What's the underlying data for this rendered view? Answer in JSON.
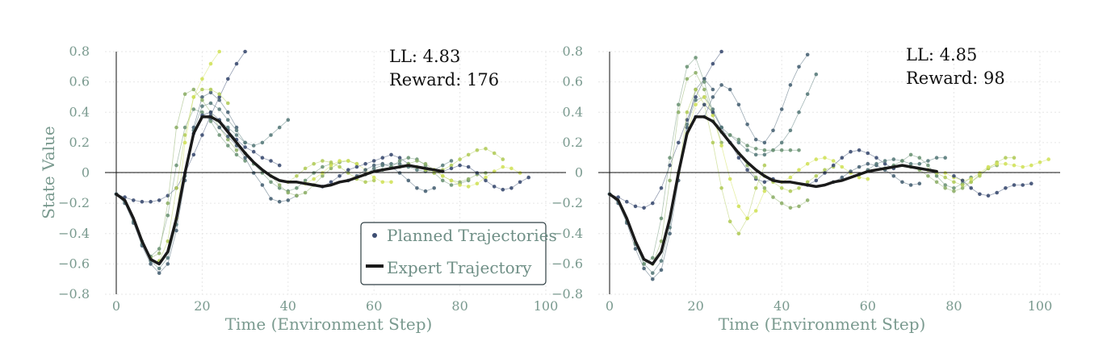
{
  "colors": {
    "expert": "#1a1a1a",
    "palette": [
      "#3d4e72",
      "#4a6476",
      "#5a7c7c",
      "#6f9678",
      "#8fb06a",
      "#b2cc5c",
      "#d2e25c"
    ],
    "axis_text": "#7a9a8f",
    "grid": "#e6e6e6"
  },
  "legend": {
    "planned_label": "Planned Trajectories",
    "expert_label": "Expert Trajectory"
  },
  "chart_data": [
    {
      "type": "line",
      "title": "",
      "xlabel": "Time (Environment Step)",
      "ylabel": "State Value",
      "xlim": [
        -3,
        101
      ],
      "ylim": [
        -0.8,
        0.8
      ],
      "xticks": [
        0,
        20,
        40,
        60,
        80,
        100
      ],
      "yticks": [
        -0.8,
        -0.6,
        -0.4,
        -0.2,
        0,
        0.2,
        0.4,
        0.6,
        0.8
      ],
      "grid": true,
      "legend_position": "bottom-right",
      "annotations": [
        "LL: 4.83",
        "Reward: 176"
      ],
      "expert": {
        "x": [
          0,
          2,
          4,
          6,
          8,
          10,
          12,
          14,
          16,
          18,
          20,
          22,
          24,
          26,
          28,
          30,
          32,
          34,
          36,
          38,
          40,
          42,
          44,
          46,
          48,
          50,
          52,
          54,
          56,
          58,
          60,
          62,
          64,
          66,
          68,
          70,
          72,
          74,
          76
        ],
        "values": [
          -0.14,
          -0.18,
          -0.3,
          -0.45,
          -0.57,
          -0.6,
          -0.52,
          -0.3,
          0.0,
          0.26,
          0.37,
          0.37,
          0.34,
          0.27,
          0.2,
          0.13,
          0.07,
          0.02,
          -0.02,
          -0.05,
          -0.06,
          -0.06,
          -0.07,
          -0.08,
          -0.09,
          -0.08,
          -0.06,
          -0.05,
          -0.03,
          -0.01,
          0.01,
          0.02,
          0.03,
          0.04,
          0.05,
          0.04,
          0.03,
          0.02,
          0.01
        ]
      },
      "planned": [
        {
          "start": 0,
          "values": [
            -0.14,
            -0.16,
            -0.18,
            -0.19,
            -0.19,
            -0.18,
            -0.15,
            -0.1,
            0.0,
            0.12,
            0.25,
            0.38,
            0.5,
            0.62,
            0.72,
            0.8
          ]
        },
        {
          "start": 0,
          "values": [
            -0.14,
            -0.2,
            -0.33,
            -0.48,
            -0.6,
            -0.66,
            -0.6,
            -0.38,
            -0.05,
            0.3,
            0.5,
            0.53,
            0.48,
            0.4,
            0.3
          ]
        },
        {
          "start": 0,
          "values": [
            -0.14,
            -0.19,
            -0.32,
            -0.47,
            -0.58,
            -0.63,
            -0.56,
            -0.34,
            -0.02,
            0.28,
            0.44,
            0.46,
            0.42,
            0.35,
            0.28,
            0.2
          ]
        },
        {
          "start": 6,
          "values": [
            -0.45,
            -0.55,
            -0.5,
            -0.28,
            0.05,
            0.3,
            0.42,
            0.4,
            0.34,
            0.25,
            0.18,
            0.12,
            0.08
          ]
        },
        {
          "start": 8,
          "values": [
            -0.56,
            -0.53,
            -0.2,
            0.3,
            0.52,
            0.55,
            0.48,
            0.4,
            0.3,
            0.22,
            0.15
          ]
        },
        {
          "start": 10,
          "values": [
            -0.58,
            -0.45,
            -0.1,
            0.25,
            0.5,
            0.55,
            0.55,
            0.52,
            0.46
          ]
        },
        {
          "start": 14,
          "values": [
            -0.3,
            0.2,
            0.5,
            0.62,
            0.72,
            0.8
          ]
        },
        {
          "start": 18,
          "values": [
            0.26,
            0.38,
            0.4,
            0.35,
            0.28,
            0.22,
            0.17,
            0.14,
            0.1,
            0.08,
            0.05
          ]
        },
        {
          "start": 20,
          "values": [
            0.37,
            0.36,
            0.3,
            0.24,
            0.18,
            0.1,
            0.0,
            -0.08,
            -0.17,
            -0.19,
            -0.18,
            -0.15
          ]
        },
        {
          "start": 24,
          "values": [
            0.34,
            0.3,
            0.25,
            0.2,
            0.18,
            0.2,
            0.25,
            0.3,
            0.35
          ]
        },
        {
          "start": 30,
          "values": [
            0.13,
            0.06,
            0.0,
            -0.06,
            -0.1,
            -0.12,
            -0.1,
            -0.05,
            0.0,
            0.04,
            0.06
          ]
        },
        {
          "start": 36,
          "values": [
            -0.02,
            -0.08,
            -0.13,
            -0.15,
            -0.13,
            -0.08,
            -0.02,
            0.03,
            0.07,
            0.08,
            0.06
          ]
        },
        {
          "start": 40,
          "values": [
            -0.06,
            -0.02,
            0.03,
            0.06,
            0.08,
            0.07,
            0.04,
            0.0,
            -0.04,
            -0.06,
            -0.05
          ]
        },
        {
          "start": 44,
          "values": [
            -0.07,
            -0.04,
            0.0,
            0.05,
            0.08,
            0.08,
            0.06,
            0.02,
            -0.03,
            -0.06,
            -0.06
          ]
        },
        {
          "start": 48,
          "values": [
            -0.09,
            -0.06,
            -0.02,
            0.02,
            0.04,
            0.06,
            0.08,
            0.1,
            0.12,
            0.1,
            0.06
          ]
        },
        {
          "start": 54,
          "values": [
            -0.05,
            -0.02,
            0.02,
            0.05,
            0.06,
            0.04,
            0.0,
            -0.05,
            -0.1,
            -0.12,
            -0.1
          ]
        },
        {
          "start": 58,
          "values": [
            -0.01,
            0.03,
            0.05,
            0.06,
            0.06,
            0.04,
            0.02,
            0.01,
            0.02,
            0.05,
            0.08
          ]
        },
        {
          "start": 62,
          "values": [
            0.02,
            0.04,
            0.08,
            0.1,
            0.09,
            0.05,
            0.0,
            -0.05,
            -0.08,
            -0.07,
            -0.05
          ]
        },
        {
          "start": 66,
          "values": [
            0.04,
            0.06,
            0.08,
            0.06,
            0.02,
            -0.02,
            -0.05,
            -0.06,
            -0.04,
            -0.01,
            0.0
          ]
        },
        {
          "start": 70,
          "values": [
            0.04,
            0.02,
            0.0,
            0.02,
            0.05,
            0.09,
            0.12,
            0.15,
            0.16,
            0.13,
            0.09
          ]
        },
        {
          "start": 74,
          "values": [
            0.02,
            -0.02,
            -0.05,
            -0.08,
            -0.09,
            -0.07,
            -0.03,
            0.01,
            0.04,
            0.03,
            0.0
          ]
        },
        {
          "start": 76,
          "values": [
            0.01,
            0.03,
            0.05,
            0.04,
            0.0,
            -0.05,
            -0.09,
            -0.11,
            -0.1,
            -0.06,
            -0.03
          ]
        }
      ]
    },
    {
      "type": "line",
      "title": "",
      "xlabel": "Time (Environment Step)",
      "ylabel": "",
      "xlim": [
        -3,
        101
      ],
      "ylim": [
        -0.8,
        0.8
      ],
      "xticks": [
        0,
        20,
        40,
        60,
        80,
        100
      ],
      "yticks": [
        -0.8,
        -0.6,
        -0.4,
        -0.2,
        0,
        0.2,
        0.4,
        0.6,
        0.8
      ],
      "grid": true,
      "annotations": [
        "LL: 4.85",
        "Reward: 98"
      ],
      "expert": {
        "x": [
          0,
          2,
          4,
          6,
          8,
          10,
          12,
          14,
          16,
          18,
          20,
          22,
          24,
          26,
          28,
          30,
          32,
          34,
          36,
          38,
          40,
          42,
          44,
          46,
          48,
          50,
          52,
          54,
          56,
          58,
          60,
          62,
          64,
          66,
          68,
          70,
          72,
          74,
          76
        ],
        "values": [
          -0.14,
          -0.18,
          -0.3,
          -0.45,
          -0.57,
          -0.6,
          -0.52,
          -0.3,
          0.0,
          0.26,
          0.37,
          0.37,
          0.34,
          0.27,
          0.2,
          0.13,
          0.07,
          0.02,
          -0.02,
          -0.05,
          -0.06,
          -0.06,
          -0.07,
          -0.08,
          -0.09,
          -0.08,
          -0.06,
          -0.05,
          -0.03,
          -0.01,
          0.01,
          0.02,
          0.03,
          0.04,
          0.05,
          0.04,
          0.03,
          0.02,
          0.01
        ]
      },
      "planned": [
        {
          "start": 0,
          "values": [
            -0.14,
            -0.16,
            -0.19,
            -0.22,
            -0.23,
            -0.2,
            -0.1,
            0.05,
            0.2,
            0.35,
            0.5,
            0.62,
            0.72,
            0.8
          ]
        },
        {
          "start": 0,
          "values": [
            -0.14,
            -0.2,
            -0.33,
            -0.5,
            -0.63,
            -0.7,
            -0.64,
            -0.4,
            -0.05,
            0.3,
            0.55,
            0.62,
            0.55
          ]
        },
        {
          "start": 0,
          "values": [
            -0.14,
            -0.19,
            -0.32,
            -0.47,
            -0.6,
            -0.66,
            -0.58,
            -0.36,
            0.0,
            0.32,
            0.48,
            0.5,
            0.42,
            0.3
          ]
        },
        {
          "start": 6,
          "values": [
            -0.46,
            -0.6,
            -0.56,
            -0.3,
            0.1,
            0.45,
            0.7,
            0.76,
            0.6,
            0.4
          ]
        },
        {
          "start": 10,
          "values": [
            -0.6,
            -0.45,
            -0.05,
            0.4,
            0.62,
            0.66,
            0.55,
            0.38,
            0.2
          ]
        },
        {
          "start": 16,
          "values": [
            0.0,
            0.4,
            0.55,
            0.45,
            0.2,
            -0.1,
            -0.32,
            -0.4,
            -0.3,
            -0.1,
            0.05
          ]
        },
        {
          "start": 18,
          "values": [
            0.26,
            0.45,
            0.5,
            0.38,
            0.18,
            -0.04,
            -0.22,
            -0.3,
            -0.25,
            -0.12
          ]
        },
        {
          "start": 20,
          "values": [
            0.37,
            0.45,
            0.4,
            0.3,
            0.2,
            0.1,
            0.02,
            -0.04,
            -0.06,
            -0.04
          ]
        },
        {
          "start": 22,
          "values": [
            0.37,
            0.5,
            0.58,
            0.55,
            0.45,
            0.32,
            0.22,
            0.2,
            0.28,
            0.42,
            0.58,
            0.7,
            0.78
          ]
        },
        {
          "start": 24,
          "values": [
            0.34,
            0.3,
            0.25,
            0.2,
            0.15,
            0.12,
            0.12,
            0.15,
            0.2,
            0.28,
            0.4,
            0.52,
            0.65
          ]
        },
        {
          "start": 26,
          "values": [
            0.27,
            0.25,
            0.22,
            0.18,
            0.16,
            0.15,
            0.15,
            0.15,
            0.15,
            0.15
          ]
        },
        {
          "start": 30,
          "values": [
            0.13,
            0.05,
            -0.03,
            -0.1,
            -0.16,
            -0.2,
            -0.23,
            -0.22,
            -0.18
          ]
        },
        {
          "start": 36,
          "values": [
            -0.02,
            -0.06,
            -0.1,
            -0.12,
            -0.1,
            -0.06,
            -0.02,
            0.02,
            0.04
          ]
        },
        {
          "start": 40,
          "values": [
            -0.06,
            -0.03,
            0.02,
            0.06,
            0.09,
            0.1,
            0.08,
            0.04,
            0.0,
            -0.03,
            -0.04
          ]
        },
        {
          "start": 46,
          "values": [
            -0.08,
            -0.05,
            0.0,
            0.05,
            0.1,
            0.14,
            0.15,
            0.13,
            0.1,
            0.06,
            0.03
          ]
        },
        {
          "start": 52,
          "values": [
            -0.06,
            -0.03,
            0.01,
            0.04,
            0.06,
            0.05,
            0.02,
            -0.02,
            -0.06,
            -0.08,
            -0.07
          ]
        },
        {
          "start": 58,
          "values": [
            -0.01,
            0.02,
            0.06,
            0.08,
            0.09,
            0.08,
            0.06,
            0.06,
            0.08,
            0.1,
            0.1
          ]
        },
        {
          "start": 64,
          "values": [
            0.03,
            0.05,
            0.08,
            0.12,
            0.1,
            0.05,
            -0.02,
            -0.08,
            -0.1,
            -0.07,
            -0.03
          ]
        },
        {
          "start": 70,
          "values": [
            0.04,
            0.02,
            -0.02,
            -0.06,
            -0.1,
            -0.12,
            -0.1,
            -0.06,
            -0.01,
            0.03,
            0.05
          ]
        },
        {
          "start": 74,
          "values": [
            0.02,
            0.0,
            -0.03,
            -0.06,
            -0.08,
            -0.06,
            -0.02,
            0.03,
            0.07,
            0.1,
            0.1
          ]
        },
        {
          "start": 78,
          "values": [
            0.0,
            -0.03,
            -0.05,
            -0.04,
            0.0,
            0.04,
            0.06,
            0.06,
            0.05,
            0.04,
            0.05,
            0.07,
            0.09
          ]
        },
        {
          "start": 80,
          "values": [
            -0.02,
            -0.05,
            -0.1,
            -0.14,
            -0.15,
            -0.13,
            -0.1,
            -0.08,
            -0.08,
            -0.07
          ]
        }
      ]
    }
  ]
}
